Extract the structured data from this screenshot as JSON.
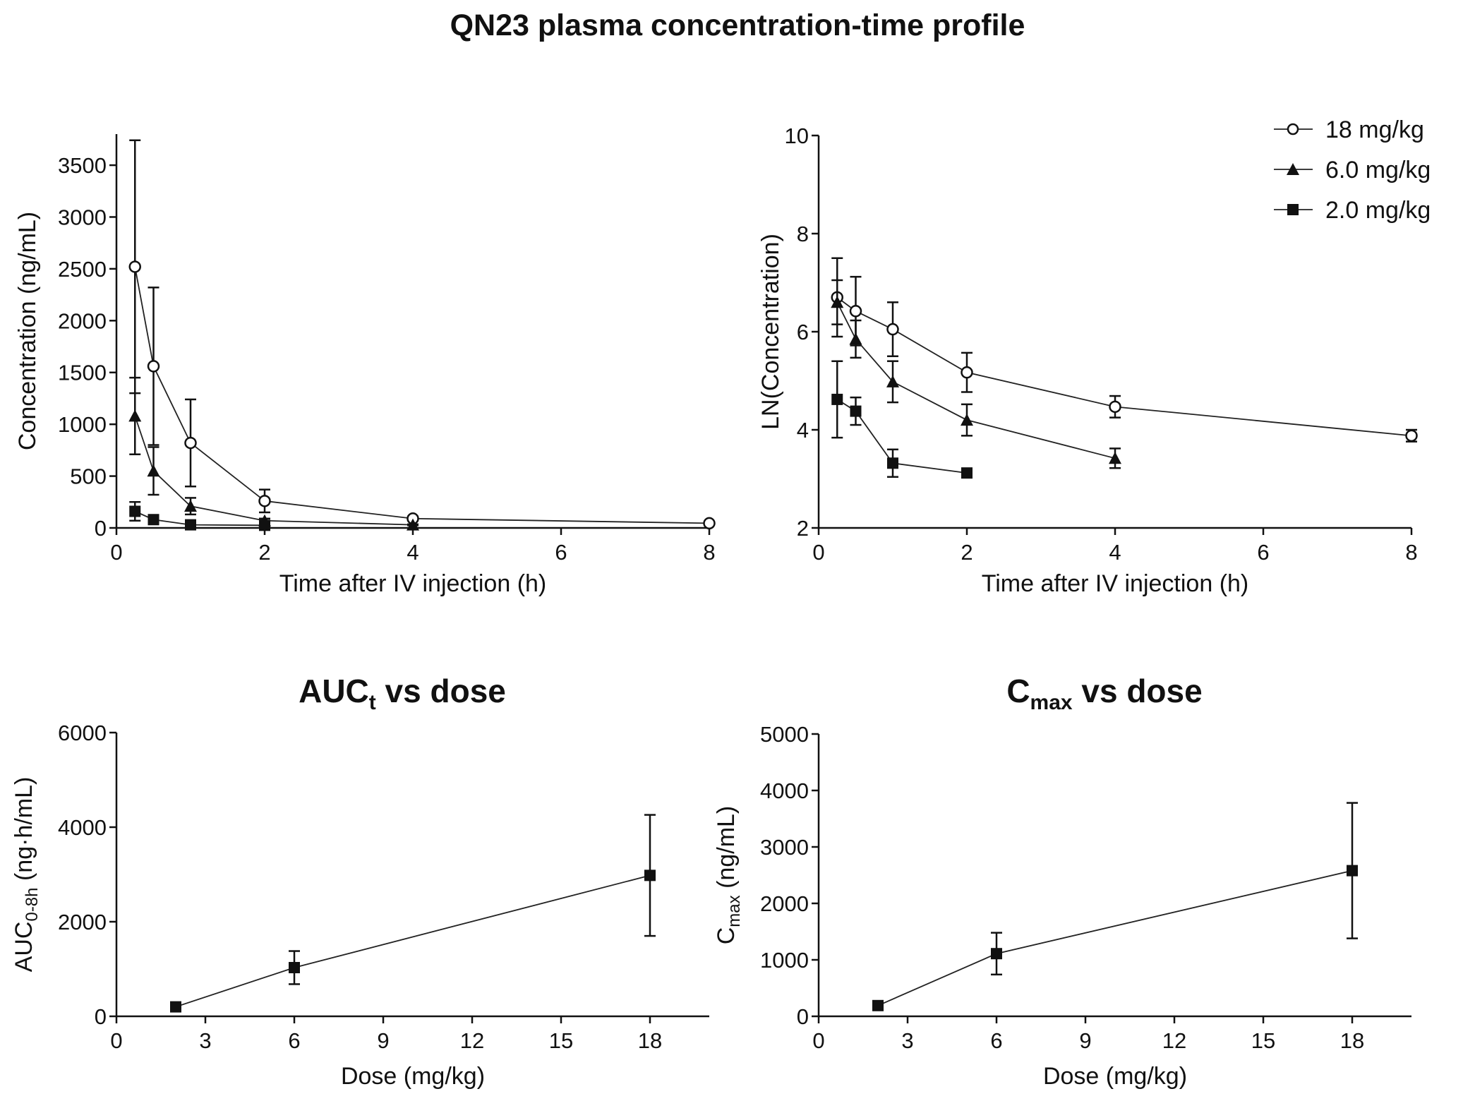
{
  "figure": {
    "title": "QN23 plasma concentration-time profile",
    "legend": [
      {
        "series": "18 mg/kg",
        "marker": "circle-open"
      },
      {
        "series": "6.0 mg/kg",
        "marker": "triangle-filled"
      },
      {
        "series": "2.0 mg/kg",
        "marker": "square-filled"
      }
    ]
  },
  "chart_data": [
    {
      "id": "conc",
      "type": "line",
      "title": "",
      "xlabel": "Time after IV injection (h)",
      "ylabel": "Concentration (ng/mL)",
      "xlim": [
        0,
        8
      ],
      "ylim": [
        0,
        3800
      ],
      "xticks": [
        0,
        2,
        4,
        6,
        8
      ],
      "yticks": [
        0,
        500,
        1000,
        1500,
        2000,
        2500,
        3000,
        3500
      ],
      "series": [
        {
          "name": "18 mg/kg",
          "marker": "circle-open",
          "x": [
            0.25,
            0.5,
            1,
            2,
            4,
            8
          ],
          "y": [
            2520,
            1560,
            820,
            260,
            90,
            45
          ],
          "err": [
            1220,
            760,
            420,
            110,
            20,
            12
          ]
        },
        {
          "name": "6.0 mg/kg",
          "marker": "triangle-filled",
          "x": [
            0.25,
            0.5,
            1,
            2,
            4
          ],
          "y": [
            1080,
            550,
            210,
            70,
            30
          ],
          "err": [
            370,
            230,
            80,
            20,
            5
          ]
        },
        {
          "name": "2.0 mg/kg",
          "marker": "square-filled",
          "x": [
            0.25,
            0.5,
            1,
            2
          ],
          "y": [
            160,
            80,
            30,
            25
          ],
          "err": [
            90,
            20,
            8,
            5
          ]
        }
      ]
    },
    {
      "id": "ln",
      "type": "line",
      "title": "",
      "xlabel": "Time after IV injection (h)",
      "ylabel": "LN(Concentration)",
      "xlim": [
        0,
        8
      ],
      "ylim": [
        2,
        10
      ],
      "xticks": [
        0,
        2,
        4,
        6,
        8
      ],
      "yticks": [
        2,
        4,
        6,
        8,
        10
      ],
      "series": [
        {
          "name": "18 mg/kg",
          "marker": "circle-open",
          "x": [
            0.25,
            0.5,
            1,
            2,
            4,
            8
          ],
          "y": [
            6.7,
            6.42,
            6.05,
            5.17,
            4.47,
            3.88
          ],
          "err": [
            0.8,
            0.7,
            0.55,
            0.4,
            0.22,
            0.12
          ]
        },
        {
          "name": "6.0 mg/kg",
          "marker": "triangle-filled",
          "x": [
            0.25,
            0.5,
            1,
            2,
            4
          ],
          "y": [
            6.6,
            5.85,
            4.98,
            4.2,
            3.42
          ],
          "err": [
            0.45,
            0.38,
            0.42,
            0.32,
            0.2
          ]
        },
        {
          "name": "2.0 mg/kg",
          "marker": "square-filled",
          "x": [
            0.25,
            0.5,
            1,
            2
          ],
          "y": [
            4.62,
            4.38,
            3.32,
            3.12
          ],
          "err": [
            0.78,
            0.28,
            0.28,
            0.05
          ]
        }
      ]
    },
    {
      "id": "auc",
      "type": "line",
      "title": "AUC",
      "title_sub": "t",
      "title_rest": " vs dose",
      "xlabel": "Dose (mg/kg)",
      "ylabel": "AUC",
      "ylabel_sub": "0-8h",
      "ylabel_rest": " (ng·h/mL)",
      "xlim": [
        0,
        20
      ],
      "ylim": [
        0,
        6000
      ],
      "xticks": [
        0,
        3,
        6,
        9,
        12,
        15,
        18
      ],
      "yticks": [
        0,
        2000,
        4000,
        6000
      ],
      "series": [
        {
          "name": "AUC",
          "marker": "square-filled",
          "x": [
            2,
            6,
            18
          ],
          "y": [
            200,
            1030,
            2980
          ],
          "err": [
            60,
            350,
            1280
          ]
        }
      ]
    },
    {
      "id": "cmax",
      "type": "line",
      "title": "C",
      "title_sub": "max",
      "title_rest": " vs dose",
      "xlabel": "Dose (mg/kg)",
      "ylabel": "C",
      "ylabel_sub": "max",
      "ylabel_rest": " (ng/mL)",
      "xlim": [
        0,
        20
      ],
      "ylim": [
        0,
        5000
      ],
      "xticks": [
        0,
        3,
        6,
        9,
        12,
        15,
        18
      ],
      "yticks": [
        0,
        1000,
        2000,
        3000,
        4000,
        5000
      ],
      "series": [
        {
          "name": "Cmax",
          "marker": "square-filled",
          "x": [
            2,
            6,
            18
          ],
          "y": [
            190,
            1110,
            2580
          ],
          "err": [
            40,
            370,
            1200
          ]
        }
      ]
    }
  ]
}
